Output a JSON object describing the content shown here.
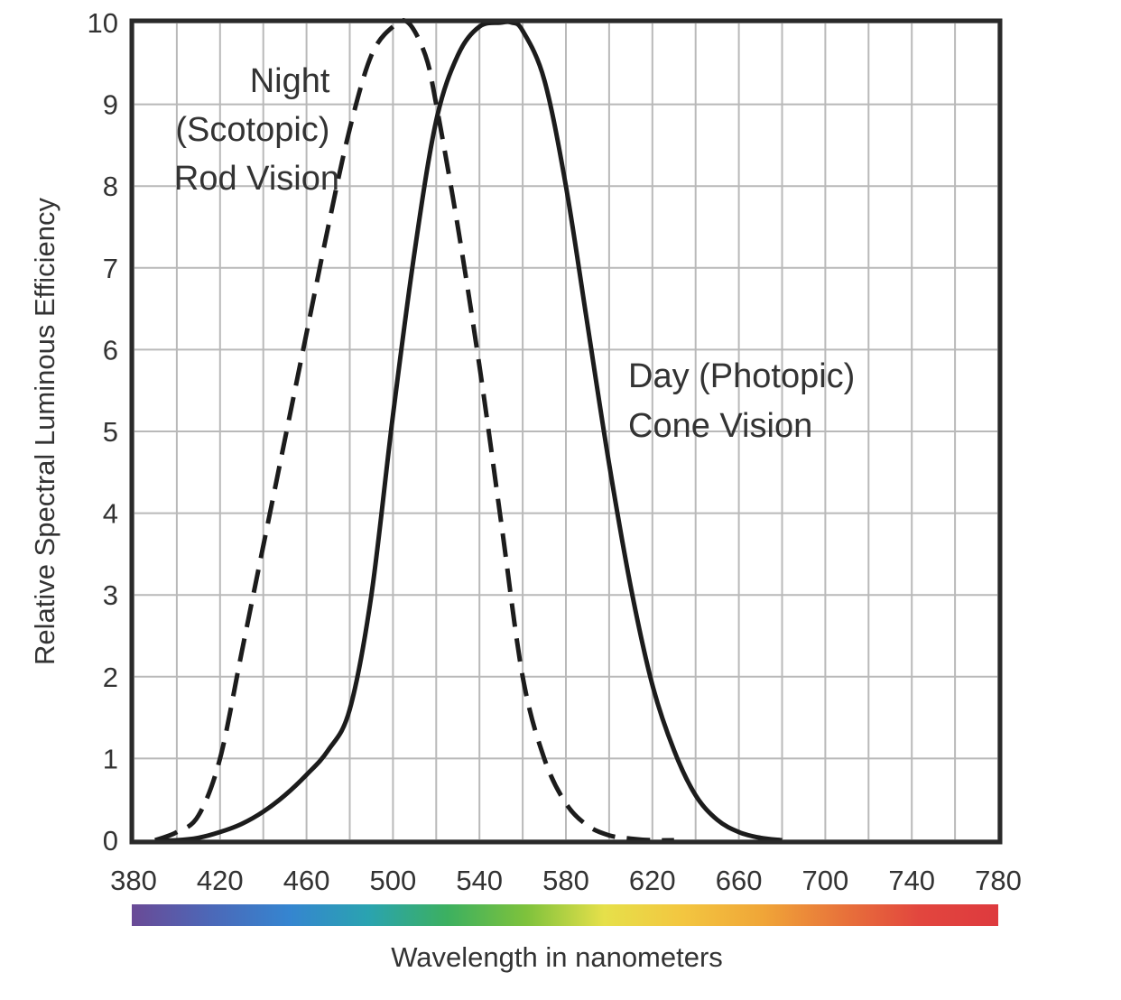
{
  "chart_data": {
    "type": "line",
    "xlabel": "Wavelength in nanometers",
    "ylabel": "Relative Spectral Luminous Efficiency",
    "xlim": [
      380,
      780
    ],
    "ylim": [
      0,
      10
    ],
    "x_ticks": [
      380,
      420,
      460,
      500,
      540,
      580,
      620,
      660,
      700,
      740,
      780
    ],
    "y_ticks": [
      0,
      1,
      2,
      3,
      4,
      5,
      6,
      7,
      8,
      9,
      10
    ],
    "grid": true,
    "series": [
      {
        "name": "Night (Scotopic) Rod Vision",
        "style": "dashed",
        "x": [
          390,
          400,
          410,
          420,
          430,
          440,
          450,
          460,
          470,
          480,
          490,
          500,
          507,
          515,
          520,
          530,
          540,
          550,
          560,
          570,
          580,
          590,
          600,
          610,
          620,
          630
        ],
        "y": [
          0.0,
          0.1,
          0.3,
          1.0,
          2.3,
          3.6,
          4.9,
          6.2,
          7.5,
          8.7,
          9.6,
          9.95,
          10.0,
          9.6,
          9.0,
          7.5,
          5.8,
          3.9,
          2.0,
          1.0,
          0.45,
          0.18,
          0.06,
          0.02,
          0.0,
          0.0
        ]
      },
      {
        "name": "Day (Photopic) Cone Vision",
        "style": "solid",
        "x": [
          390,
          400,
          410,
          420,
          430,
          440,
          450,
          460,
          470,
          480,
          490,
          500,
          510,
          520,
          530,
          540,
          550,
          555,
          560,
          570,
          580,
          590,
          600,
          610,
          620,
          630,
          640,
          650,
          660,
          670,
          680
        ],
        "y": [
          0.0,
          0.0,
          0.03,
          0.1,
          0.2,
          0.35,
          0.55,
          0.8,
          1.1,
          1.6,
          3.0,
          5.2,
          7.2,
          8.8,
          9.6,
          9.95,
          10.0,
          10.0,
          9.9,
          9.3,
          8.0,
          6.3,
          4.6,
          3.1,
          1.9,
          1.1,
          0.55,
          0.25,
          0.1,
          0.03,
          0.0
        ]
      }
    ],
    "annotations": [
      {
        "lines": [
          "Night",
          "(Scotopic)",
          "Rod Vision"
        ]
      },
      {
        "lines": [
          "Day (Photopic)",
          "Cone Vision"
        ]
      }
    ],
    "spectrum_bar": {
      "colors": [
        "#6a4a96",
        "#4c68b8",
        "#3585d0",
        "#2aa3b0",
        "#3cb060",
        "#7ec23c",
        "#e6e04a",
        "#f3c640",
        "#f0a638",
        "#e8743a",
        "#e2463e",
        "#de3a3e"
      ]
    }
  }
}
